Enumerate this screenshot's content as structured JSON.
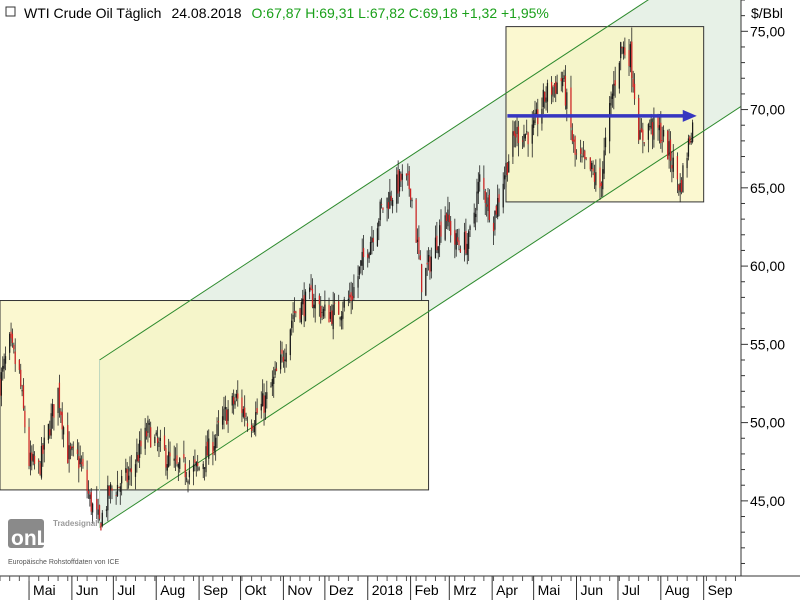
{
  "header": {
    "title": "WTI Crude Oil Täglich",
    "date": "24.08.2018",
    "stats": "O:67,87 H:69,31 L:67,82 C:69,18 +1,32 +1,95%",
    "unit": "$/Bbl"
  },
  "watermark": {
    "brand": "onLine",
    "brand_super": "Tradesignal",
    "source": "Europäische Rohstoffdaten von ICE"
  },
  "colors": {
    "up_candle": "#1a1a1a",
    "down_candle": "#cc2222",
    "channel_fill": "#e3efe3",
    "channel_line": "#2e8b2e",
    "box_fill": "#f9f5c0",
    "box_border": "#333333",
    "arrow": "#3636c0",
    "stats_text": "#1aa01a"
  },
  "chart_data": {
    "type": "candlestick",
    "title": "WTI Crude Oil Täglich",
    "ylabel": "$/Bbl",
    "ylim": [
      40.2,
      77.0
    ],
    "y_ticks": [
      "45,00",
      "50,00",
      "55,00",
      "60,00",
      "65,00",
      "70,00",
      "75,00"
    ],
    "y_tick_values": [
      45,
      50,
      55,
      60,
      65,
      70,
      75
    ],
    "x_range": [
      "2017-04-10",
      "2018-09-28"
    ],
    "x_ticks": [
      {
        "date": "2017-05-01",
        "label": "Mai"
      },
      {
        "date": "2017-06-01",
        "label": "Jun"
      },
      {
        "date": "2017-07-01",
        "label": "Jul"
      },
      {
        "date": "2017-08-01",
        "label": "Aug"
      },
      {
        "date": "2017-09-01",
        "label": "Sep"
      },
      {
        "date": "2017-10-01",
        "label": "Okt"
      },
      {
        "date": "2017-11-01",
        "label": "Nov"
      },
      {
        "date": "2017-12-01",
        "label": "Dez"
      },
      {
        "date": "2018-01-01",
        "label": "2018"
      },
      {
        "date": "2018-02-01",
        "label": "Feb"
      },
      {
        "date": "2018-03-01",
        "label": "Mrz"
      },
      {
        "date": "2018-04-01",
        "label": "Apr"
      },
      {
        "date": "2018-05-01",
        "label": "Mai"
      },
      {
        "date": "2018-06-01",
        "label": "Jun"
      },
      {
        "date": "2018-07-01",
        "label": "Jul"
      },
      {
        "date": "2018-08-01",
        "label": "Aug"
      },
      {
        "date": "2018-09-01",
        "label": "Sep"
      }
    ],
    "close_path": [
      [
        "2017-04-10",
        52.5
      ],
      [
        "2017-04-17",
        55.0
      ],
      [
        "2017-04-24",
        53.0
      ],
      [
        "2017-05-01",
        47.5
      ],
      [
        "2017-05-08",
        47.0
      ],
      [
        "2017-05-15",
        49.5
      ],
      [
        "2017-05-22",
        52.0
      ],
      [
        "2017-05-29",
        48.0
      ],
      [
        "2017-06-07",
        47.5
      ],
      [
        "2017-06-14",
        45.0
      ],
      [
        "2017-06-21",
        43.5
      ],
      [
        "2017-06-28",
        45.5
      ],
      [
        "2017-07-05",
        46.0
      ],
      [
        "2017-07-12",
        46.5
      ],
      [
        "2017-07-26",
        49.5
      ],
      [
        "2017-08-02",
        48.5
      ],
      [
        "2017-08-16",
        47.0
      ],
      [
        "2017-08-31",
        47.0
      ],
      [
        "2017-09-10",
        48.5
      ],
      [
        "2017-09-20",
        50.5
      ],
      [
        "2017-09-28",
        51.5
      ],
      [
        "2017-10-08",
        50.0
      ],
      [
        "2017-10-20",
        51.5
      ],
      [
        "2017-10-31",
        54.0
      ],
      [
        "2017-11-08",
        57.0
      ],
      [
        "2017-11-22",
        58.0
      ],
      [
        "2017-11-30",
        57.0
      ],
      [
        "2017-12-08",
        57.0
      ],
      [
        "2017-12-20",
        58.0
      ],
      [
        "2017-12-29",
        60.5
      ],
      [
        "2018-01-10",
        63.5
      ],
      [
        "2018-01-25",
        65.5
      ],
      [
        "2018-02-01",
        65.0
      ],
      [
        "2018-02-09",
        59.0
      ],
      [
        "2018-02-14",
        60.0
      ],
      [
        "2018-02-26",
        63.5
      ],
      [
        "2018-03-05",
        61.5
      ],
      [
        "2018-03-15",
        61.5
      ],
      [
        "2018-03-23",
        65.5
      ],
      [
        "2018-04-02",
        63.0
      ],
      [
        "2018-04-10",
        66.0
      ],
      [
        "2018-04-18",
        68.5
      ],
      [
        "2018-04-30",
        68.5
      ],
      [
        "2018-05-10",
        71.0
      ],
      [
        "2018-05-22",
        72.0
      ],
      [
        "2018-05-31",
        67.0
      ],
      [
        "2018-06-12",
        66.0
      ],
      [
        "2018-06-18",
        65.0
      ],
      [
        "2018-06-26",
        70.5
      ],
      [
        "2018-07-03",
        74.0
      ],
      [
        "2018-07-10",
        73.5
      ],
      [
        "2018-07-17",
        68.0
      ],
      [
        "2018-07-24",
        69.0
      ],
      [
        "2018-08-01",
        68.5
      ],
      [
        "2018-08-08",
        67.0
      ],
      [
        "2018-08-15",
        65.0
      ],
      [
        "2018-08-24",
        69.2
      ]
    ],
    "annotations": {
      "channel": {
        "start_date": "2017-06-21",
        "end_date": "2018-09-28",
        "lower_start": 43.3,
        "lower_end": 70.2,
        "upper_start": 54.0,
        "upper_end": 80.9
      },
      "rect_2017": {
        "x0": "2017-04-10",
        "x1": "2018-02-14",
        "y0": 45.7,
        "y1": 57.8
      },
      "rect_2018": {
        "x0": "2018-04-11",
        "x1": "2018-09-01",
        "y0": 64.1,
        "y1": 75.3
      },
      "arrow": {
        "x0": "2018-04-12",
        "x1": "2018-08-27",
        "y": 69.6
      }
    }
  }
}
